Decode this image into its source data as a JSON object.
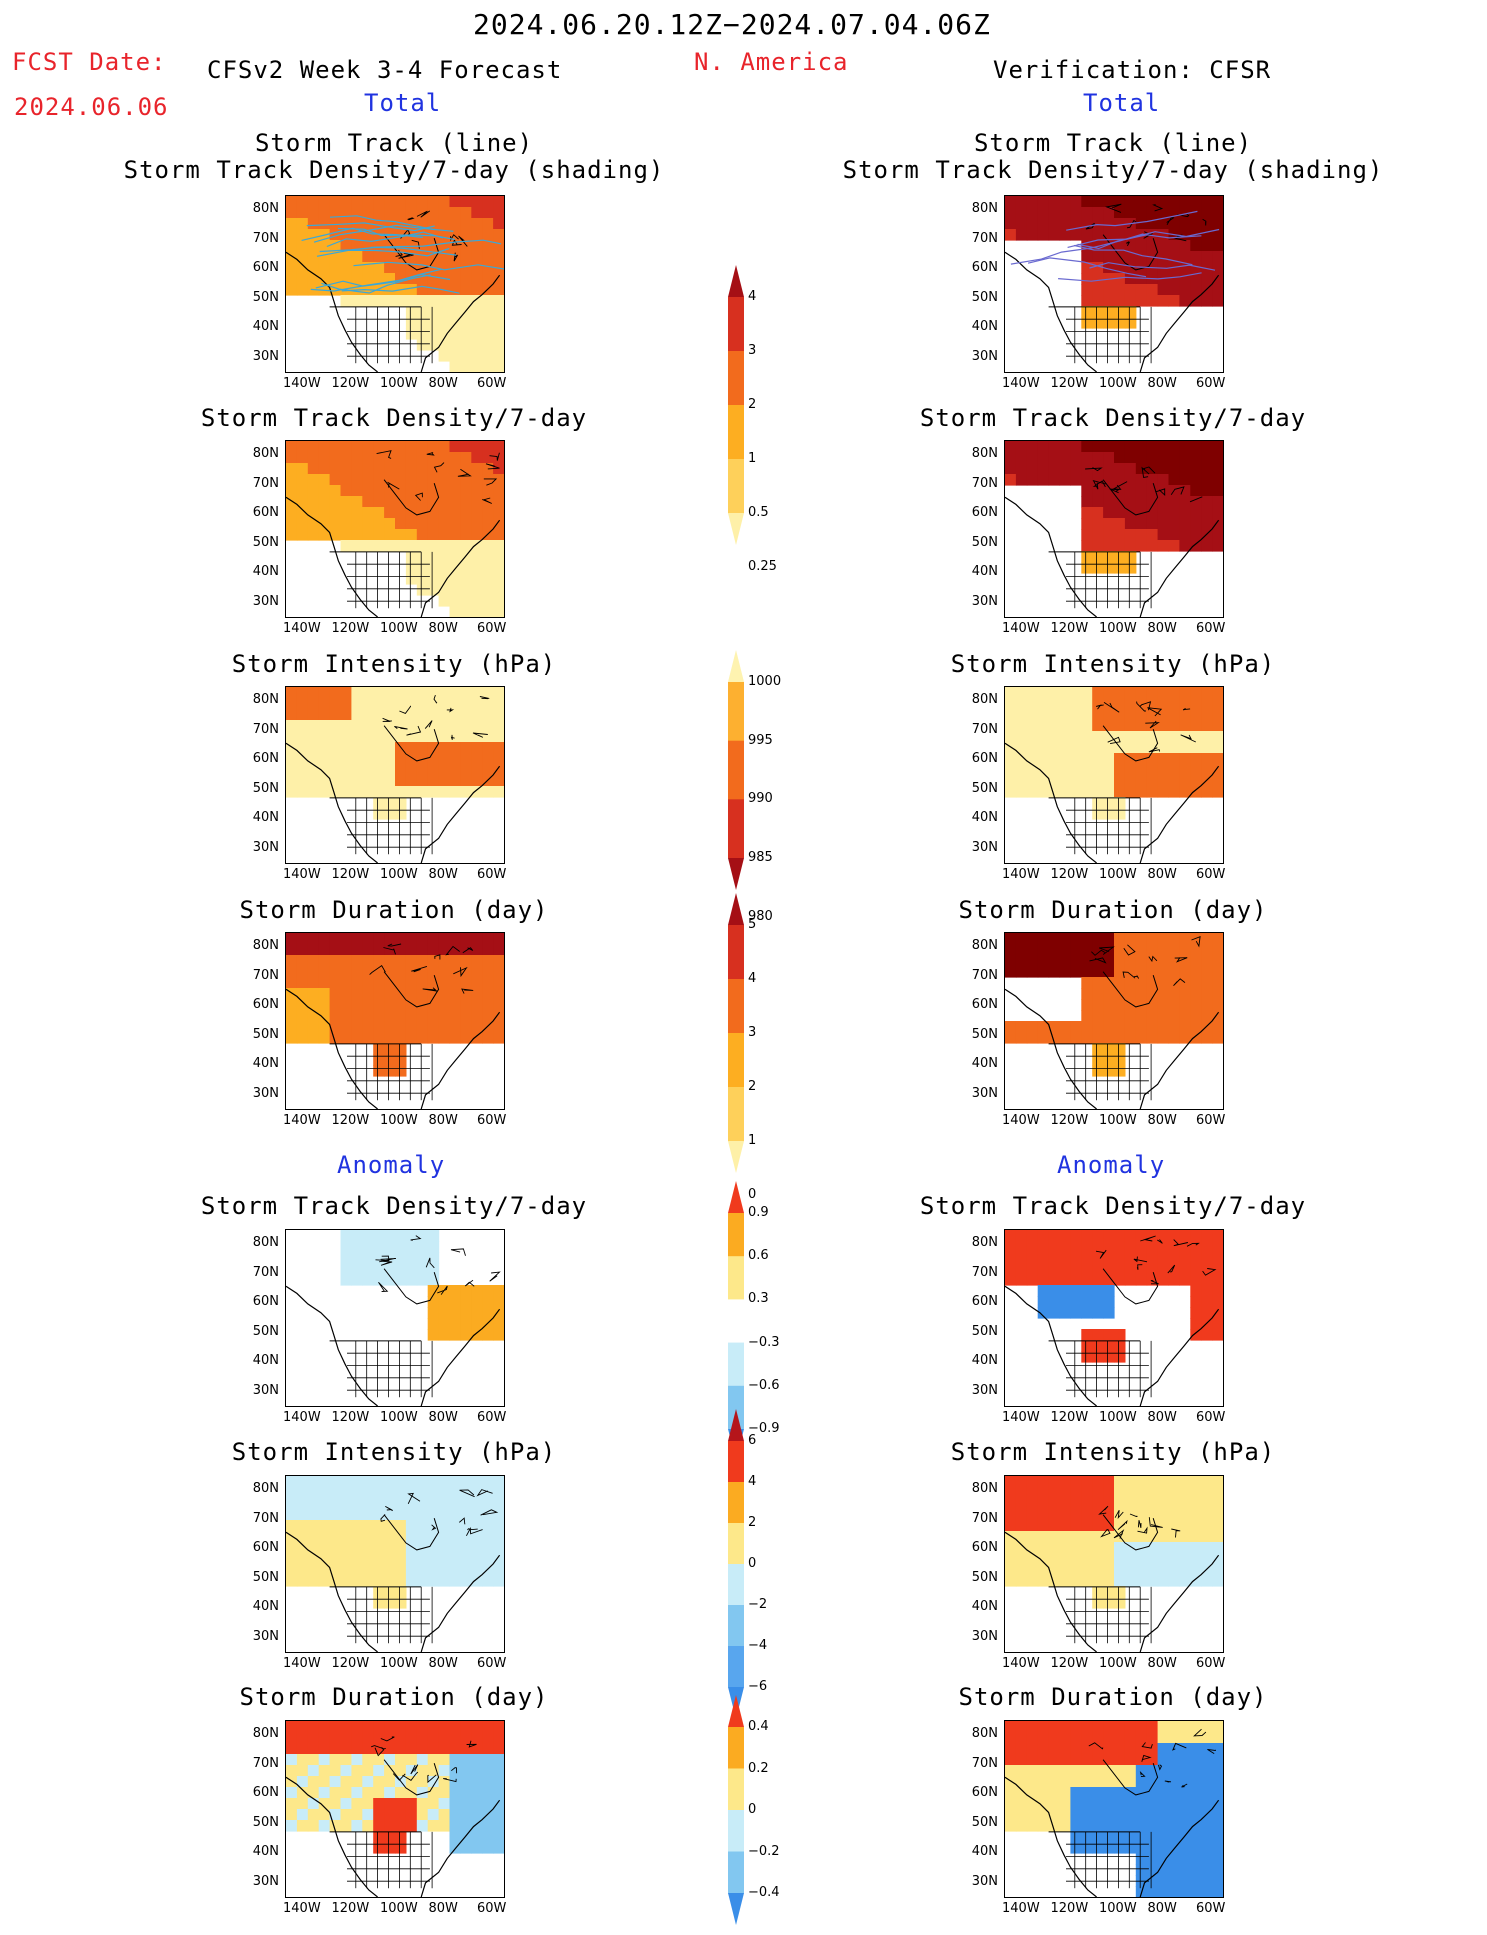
{
  "header": {
    "date_range": "2024.06.20.12Z−2024.07.04.06Z",
    "fcst_label": "FCST Date:",
    "fcst_date": "2024.06.06",
    "region": "N. America",
    "forecast_title": "CFSv2 Week 3-4 Forecast",
    "verification_title": "Verification: CFSR",
    "left_total": "Total",
    "right_total": "Total",
    "left_anomaly": "Anomaly",
    "right_anomaly": "Anomaly"
  },
  "panel_titles": {
    "track": "Storm Track (line)\nStorm Track Density/7-day (shading)",
    "density": "Storm Track Density/7-day",
    "intensity": "Storm Intensity (hPa)",
    "duration": "Storm Duration (day)",
    "anom_density": "Storm Track Density/7-day",
    "anom_intensity": "Storm Intensity (hPa)",
    "anom_duration": "Storm Duration (day)"
  },
  "axes": {
    "lat_labels": [
      "80N",
      "70N",
      "60N",
      "50N",
      "40N",
      "30N"
    ],
    "lon_labels": [
      "140W",
      "120W",
      "100W",
      "80W",
      "60W"
    ]
  },
  "colorbars": {
    "density_total": {
      "labels": [
        "4",
        "3",
        "2",
        "1",
        "0.5",
        "0.25"
      ],
      "colors": [
        "#a50f15",
        "#d7301f",
        "#f26b1d",
        "#fdae21",
        "#fed05a",
        "#fef0a8"
      ]
    },
    "intensity_total": {
      "labels": [
        "1000",
        "995",
        "990",
        "985",
        "980"
      ],
      "colors": [
        "#fef3b0",
        "#fdb030",
        "#f26b1d",
        "#d7301f",
        "#a50f15"
      ]
    },
    "duration_total": {
      "labels": [
        "5",
        "4",
        "3",
        "2",
        "1",
        "0"
      ],
      "colors": [
        "#a50f15",
        "#d7301f",
        "#f26b1d",
        "#fdae21",
        "#fed05a",
        "#fef0a8"
      ]
    },
    "density_anom": {
      "labels": [
        "0.9",
        "0.6",
        "0.3",
        "−0.3",
        "−0.6",
        "−0.9"
      ],
      "colors": [
        "#f03a1d",
        "#fbab21",
        "#fde88a",
        "#ffffff",
        "#c8ecf8",
        "#82c7f0",
        "#3a8ee8"
      ]
    },
    "intensity_anom": {
      "labels": [
        "6",
        "4",
        "2",
        "0",
        "−2",
        "−4",
        "−6"
      ],
      "colors": [
        "#b5151b",
        "#f03a1d",
        "#fbab21",
        "#fde88a",
        "#c8ecf8",
        "#82c7f0",
        "#58a6ee",
        "#3a8ee8"
      ]
    },
    "duration_anom": {
      "labels": [
        "0.4",
        "0.2",
        "0",
        "−0.2",
        "−0.4"
      ],
      "colors": [
        "#f03a1d",
        "#fbab21",
        "#fde88a",
        "#c8ecf8",
        "#82c7f0",
        "#3a8ee8"
      ]
    }
  },
  "colors": {
    "title_red": "#e8242b",
    "title_blue": "#2033e0"
  }
}
